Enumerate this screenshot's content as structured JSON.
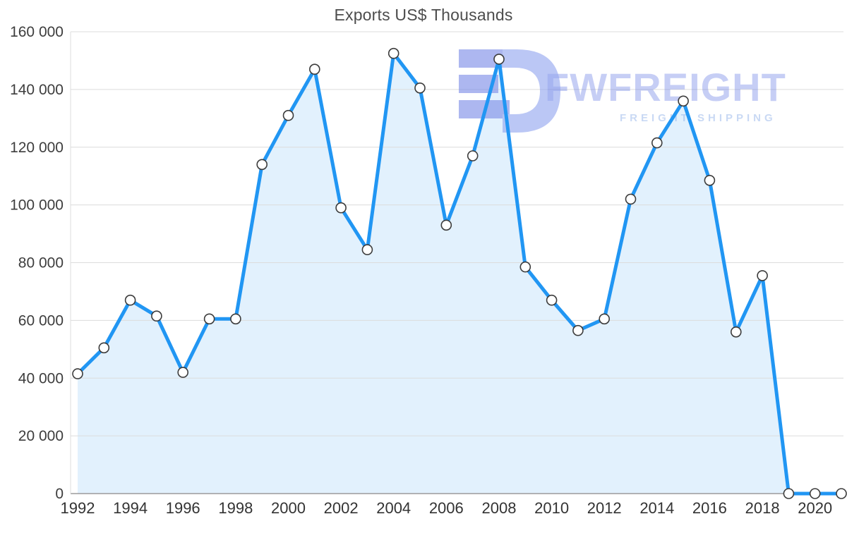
{
  "chart_data": {
    "type": "area",
    "title": "Exports US$ Thousands",
    "x": [
      1992,
      1993,
      1994,
      1995,
      1996,
      1997,
      1998,
      1999,
      2000,
      2001,
      2002,
      2003,
      2004,
      2005,
      2006,
      2007,
      2008,
      2009,
      2010,
      2011,
      2012,
      2013,
      2014,
      2015,
      2016,
      2017,
      2018,
      2019,
      2020,
      2021
    ],
    "values": [
      41500,
      50500,
      67000,
      61500,
      42000,
      60500,
      60500,
      114000,
      131000,
      147000,
      99000,
      84500,
      152500,
      140500,
      93000,
      117000,
      150500,
      78500,
      67000,
      56500,
      60500,
      102000,
      121500,
      136000,
      108500,
      56000,
      75500,
      0,
      0,
      0
    ],
    "ylim": [
      0,
      160000
    ],
    "ytick_step": 20000,
    "xtick_step": 2,
    "xtick_last_labeled": 2020,
    "grid": "horizontal",
    "legend": "none",
    "line_color": "#2196f3",
    "fill_color": "rgba(33,150,243,0.13)",
    "marker_fill": "#ffffff",
    "marker_stroke": "#3c3c3c"
  },
  "watermark": {
    "brand": "FWFREIGHT",
    "tagline": "FREIGHT SHIPPING",
    "brand_color": "rgba(88,112,228,0.55)",
    "tagline_color": "rgba(122,162,228,0.65)",
    "logo_color_dark": "#7b8ce8",
    "logo_color_light": "#93a6f0"
  }
}
